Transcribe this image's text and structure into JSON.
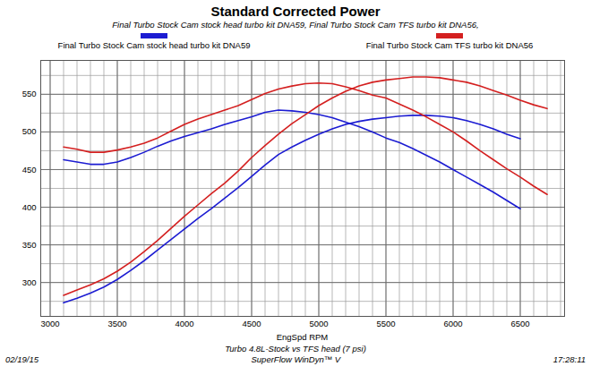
{
  "chart_data": {
    "type": "line",
    "title": "Standard Corrected Power",
    "subtitle": "Final Turbo Stock Cam stock head turbo kit DNA59, Final Turbo Stock Cam TFS turbo kit DNA56,",
    "xlabel": "EngSpd RPM",
    "caption": [
      "Turbo 4.8L-Stock vs TFS head (7 psi)",
      "SuperFlow WinDyn™ V"
    ],
    "date": "02/19/15",
    "time": "17:28:11",
    "legend": "top",
    "grid": true,
    "xlim": [
      2930,
      6830
    ],
    "xticks": [
      3000,
      3500,
      4000,
      4500,
      5000,
      5500,
      6000,
      6500
    ],
    "ylim": [
      255,
      595
    ],
    "yticks": [
      300,
      350,
      400,
      450,
      500,
      550
    ],
    "x": [
      3100,
      3200,
      3300,
      3400,
      3500,
      3600,
      3700,
      3800,
      3900,
      4000,
      4100,
      4200,
      4300,
      4400,
      4500,
      4600,
      4700,
      4800,
      4900,
      5000,
      5100,
      5200,
      5300,
      5400,
      5500,
      5600,
      5700,
      5800,
      5900,
      6000,
      6100,
      6200,
      6300,
      6400,
      6500,
      6600,
      6700
    ],
    "series": [
      {
        "name": "Final Turbo Stock Cam stock head turbo kit DNA59",
        "color": "#1c1cd2",
        "values": [
          463,
          460,
          457,
          457,
          460,
          466,
          473,
          481,
          488,
          494,
          499,
          504,
          510,
          515,
          520,
          526,
          529,
          528,
          526,
          523,
          519,
          513,
          507,
          500,
          492,
          486,
          478,
          469,
          460,
          450,
          440,
          430,
          420,
          409,
          398,
          null,
          null
        ]
      },
      {
        "name": "Final Turbo Stock Cam stock head turbo kit DNA59",
        "color": "#1c1cd2",
        "values": [
          273,
          279,
          286,
          294,
          304,
          316,
          329,
          343,
          357,
          371,
          385,
          398,
          412,
          426,
          441,
          456,
          470,
          480,
          489,
          497,
          504,
          510,
          514,
          517,
          519,
          521,
          522,
          522,
          521,
          519,
          515,
          510,
          504,
          497,
          491,
          null,
          null
        ]
      },
      {
        "name": "Final Turbo Stock Cam TFS turbo kit DNA56",
        "color": "#d42020",
        "values": [
          480,
          477,
          473,
          473,
          476,
          480,
          485,
          492,
          501,
          510,
          517,
          523,
          529,
          535,
          543,
          551,
          557,
          561,
          564,
          565,
          564,
          560,
          555,
          549,
          545,
          537,
          529,
          520,
          510,
          500,
          488,
          475,
          463,
          451,
          440,
          428,
          417
        ]
      },
      {
        "name": "Final Turbo Stock Cam TFS turbo kit DNA56",
        "color": "#d42020",
        "values": [
          283,
          290,
          297,
          305,
          315,
          327,
          341,
          356,
          372,
          388,
          403,
          418,
          432,
          448,
          466,
          482,
          497,
          511,
          523,
          535,
          545,
          554,
          561,
          566,
          569,
          571,
          573,
          573,
          572,
          569,
          566,
          561,
          555,
          549,
          542,
          536,
          531
        ]
      }
    ]
  }
}
